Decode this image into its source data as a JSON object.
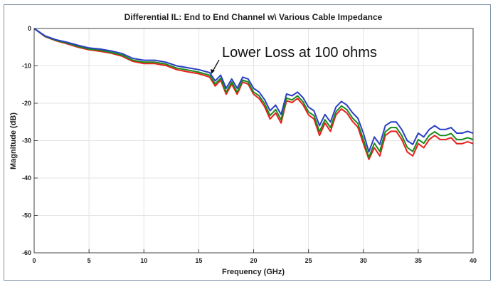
{
  "chart_data": {
    "type": "line",
    "title": "Differential IL: End to End Channel w\\ Various Cable Impedance",
    "xlabel": "Frequency (GHz)",
    "ylabel": "Magnitude (dB)",
    "xlim": [
      0,
      40
    ],
    "ylim": [
      -60,
      0
    ],
    "xticks": [
      "0",
      "5",
      "10",
      "15",
      "20",
      "25",
      "30",
      "35",
      "40"
    ],
    "yticks": [
      "0",
      "-10",
      "-20",
      "-30",
      "-40",
      "-50",
      "-60"
    ],
    "grid": true,
    "annotation": "Lower Loss at 100 ohms",
    "x": [
      0,
      1,
      2,
      3,
      4,
      5,
      6,
      7,
      8,
      9,
      10,
      11,
      12,
      13,
      14,
      15,
      16,
      16.5,
      17,
      17.5,
      18,
      18.5,
      19,
      19.5,
      20,
      20.5,
      21,
      21.5,
      22,
      22.5,
      23,
      23.5,
      24,
      24.5,
      25,
      25.5,
      26,
      26.5,
      27,
      27.5,
      28,
      28.5,
      29,
      29.5,
      30,
      30.5,
      31,
      31.5,
      32,
      32.5,
      33,
      33.5,
      34,
      34.5,
      35,
      35.5,
      36,
      36.5,
      37,
      37.5,
      38,
      38.5,
      39,
      39.5,
      40
    ],
    "series": [
      {
        "name": "red",
        "color": "#e8201c",
        "values": [
          0,
          -2.2,
          -3.3,
          -4.1,
          -5.0,
          -5.7,
          -6.1,
          -6.6,
          -7.4,
          -8.8,
          -9.4,
          -9.4,
          -9.9,
          -11,
          -11.6,
          -12.1,
          -13,
          -15.4,
          -13.8,
          -17.6,
          -14.9,
          -17.6,
          -14.3,
          -14.9,
          -17.6,
          -18.7,
          -20.9,
          -24.2,
          -22.6,
          -25.3,
          -19.3,
          -19.8,
          -18.7,
          -20.4,
          -23.1,
          -24.2,
          -28.6,
          -25.3,
          -27.5,
          -23.1,
          -21.5,
          -22.6,
          -24.8,
          -26.4,
          -30.8,
          -35,
          -31.9,
          -34.1,
          -28.6,
          -27.5,
          -27.5,
          -29.7,
          -33,
          -34.1,
          -30.8,
          -31.9,
          -29.7,
          -28.6,
          -29.7,
          -29.7,
          -29.2,
          -30.8,
          -30.8,
          -30.3,
          -30.8
        ]
      },
      {
        "name": "green",
        "color": "#1a8a1a",
        "values": [
          0,
          -2.1,
          -3.2,
          -3.9,
          -4.8,
          -5.5,
          -5.8,
          -6.4,
          -7.1,
          -8.5,
          -9.0,
          -9.0,
          -9.5,
          -10.6,
          -11.1,
          -11.7,
          -12.5,
          -14.8,
          -13.3,
          -17,
          -14.3,
          -17,
          -13.8,
          -14.3,
          -17,
          -18,
          -20.1,
          -23.3,
          -21.7,
          -24.4,
          -18.6,
          -19.1,
          -18,
          -19.6,
          -22.3,
          -23.3,
          -27.6,
          -24.4,
          -26.5,
          -22.3,
          -20.7,
          -21.7,
          -23.9,
          -25.4,
          -29.7,
          -34.5,
          -30.7,
          -32.9,
          -27.6,
          -26.5,
          -26.5,
          -28.6,
          -31.8,
          -32.9,
          -29.7,
          -30.7,
          -28.6,
          -27.6,
          -28.6,
          -28.6,
          -28.1,
          -29.7,
          -29.7,
          -29.2,
          -29.7
        ]
      },
      {
        "name": "blue",
        "color": "#2b3fc4",
        "values": [
          0,
          -2,
          -3,
          -3.7,
          -4.5,
          -5.2,
          -5.5,
          -6,
          -6.7,
          -8,
          -8.5,
          -8.5,
          -9,
          -10,
          -10.5,
          -11,
          -11.8,
          -14,
          -12.5,
          -16,
          -13.5,
          -16,
          -13,
          -13.5,
          -16,
          -17,
          -19,
          -22,
          -20.5,
          -23,
          -17.5,
          -18,
          -17,
          -18.5,
          -21,
          -22,
          -26,
          -23,
          -25,
          -21,
          -19.5,
          -20.5,
          -22.5,
          -24,
          -28,
          -33,
          -29,
          -31,
          -26,
          -25,
          -25,
          -27,
          -30,
          -31,
          -28,
          -29,
          -27,
          -26,
          -27,
          -27,
          -26.5,
          -28,
          -28,
          -27.5,
          -28
        ]
      }
    ]
  }
}
